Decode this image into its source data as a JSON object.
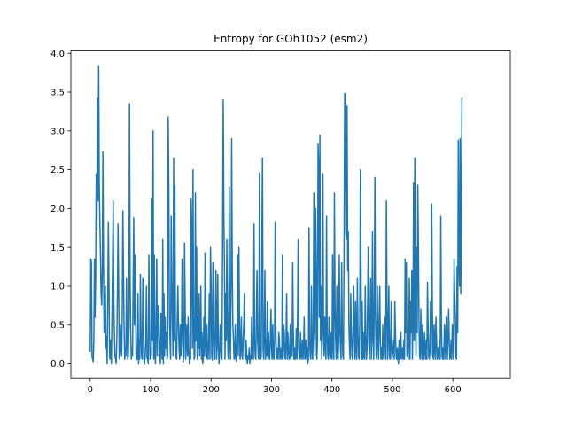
{
  "chart_data": {
    "type": "line",
    "title": "Entropy for GOh1052 (esm2)",
    "xlabel": "",
    "ylabel": "",
    "xlim": [
      -32,
      695
    ],
    "ylim": [
      -0.19,
      4.03
    ],
    "xticks": [
      0,
      100,
      200,
      300,
      400,
      500,
      600
    ],
    "yticks": [
      0.0,
      0.5,
      1.0,
      1.5,
      2.0,
      2.5,
      3.0,
      3.5,
      4.0
    ],
    "ytick_labels": [
      "0.0",
      "0.5",
      "1.0",
      "1.5",
      "2.0",
      "2.5",
      "3.0",
      "3.5",
      "4.0"
    ],
    "grid": false,
    "series": [
      {
        "color": "#1f77b4",
        "x_start": 0,
        "x_step": 1,
        "values": [
          0.15,
          1.35,
          1.3,
          0.1,
          0.05,
          0.02,
          0.3,
          1.35,
          0.6,
          1.1,
          2.45,
          1.72,
          3.42,
          2.1,
          3.84,
          2.3,
          1.8,
          1.4,
          0.9,
          0.75,
          1.2,
          2.73,
          1.3,
          0.4,
          0.8,
          1.0,
          0.2,
          0.35,
          0.0,
          0.8,
          1.82,
          1.1,
          0.1,
          0.05,
          0.3,
          0.0,
          0.62,
          1.3,
          2.1,
          0.8,
          0.4,
          0.1,
          0.05,
          0.0,
          0.3,
          0.9,
          1.8,
          1.0,
          0.08,
          0.05,
          0.5,
          0.2,
          0.1,
          0.65,
          1.97,
          1.2,
          0.5,
          0.05,
          0.2,
          0.1,
          1.1,
          0.3,
          0.05,
          0.1,
          0.5,
          3.35,
          1.1,
          0.4,
          0.05,
          0.2,
          0.1,
          1.0,
          1.88,
          0.5,
          1.4,
          0.8,
          0.04,
          0.1,
          0.05,
          0.9,
          0.0,
          0.3,
          0.05,
          1.15,
          0.4,
          0.1,
          0.05,
          1.1,
          0.7,
          0.05,
          0.0,
          0.1,
          0.3,
          1.0,
          0.08,
          0.05,
          0.0,
          1.4,
          0.6,
          0.05,
          0.2,
          0.1,
          2.12,
          0.3,
          3.0,
          0.05,
          1.4,
          0.1,
          0.0,
          0.5,
          1.35,
          0.1,
          0.75,
          0.7,
          0.3,
          0.1,
          0.0,
          0.65,
          0.2,
          0.05,
          1.6,
          0.0,
          0.9,
          0.1,
          0.6,
          0.2,
          0.4,
          0.05,
          0.1,
          3.18,
          2.3,
          0.6,
          0.3,
          0.05,
          1.9,
          1.0,
          0.5,
          0.1,
          2.65,
          0.3,
          2.3,
          0.4,
          0.1,
          0.05,
          0.6,
          1.0,
          0.5,
          0.2,
          0.05,
          0.5,
          0.1,
          0.3,
          1.35,
          0.5,
          0.02,
          0.1,
          1.55,
          0.8,
          0.05,
          0.3,
          0.5,
          0.1,
          0.6,
          0.2,
          0.0,
          0.1,
          0.05,
          2.12,
          1.6,
          0.2,
          2.5,
          0.5,
          0.05,
          0.1,
          2.2,
          0.3,
          1.5,
          0.05,
          0.6,
          0.2,
          0.9,
          0.1,
          0.3,
          1.0,
          0.05,
          0.4,
          0.0,
          0.05,
          0.6,
          0.1,
          1.42,
          0.3,
          0.05,
          0.5,
          0.1,
          0.05,
          0.3,
          0.9,
          0.05,
          1.5,
          1.0,
          0.1,
          0.04,
          1.3,
          0.5,
          0.1,
          0.05,
          0.6,
          1.2,
          0.05,
          0.3,
          1.15,
          0.2,
          0.0,
          0.1,
          0.5,
          0.2,
          0.1,
          0.05,
          1.5,
          3.4,
          2.0,
          1.3,
          0.05,
          0.9,
          0.3,
          1.6,
          0.5,
          0.1,
          0.05,
          2.28,
          0.4,
          0.05,
          1.0,
          2.9,
          1.2,
          0.5,
          0.3,
          0.05,
          0.1,
          0.5,
          0.05,
          0.02,
          0.3,
          1.4,
          0.1,
          1.5,
          0.5,
          0.05,
          0.2,
          0.6,
          0.1,
          0.05,
          0.3,
          0.5,
          0.9,
          0.1,
          0.05,
          0.3,
          0.05,
          0.0,
          0.1,
          0.05,
          0.2,
          0.0,
          0.1,
          0.05,
          0.6,
          0.3,
          0.1,
          0.05,
          1.8,
          0.3,
          0.1,
          0.05,
          0.7,
          1.2,
          0.3,
          0.1,
          0.05,
          2.46,
          0.3,
          0.05,
          0.1,
          1.55,
          2.65,
          0.2,
          0.05,
          0.4,
          1.2,
          0.05,
          0.3,
          0.1,
          0.8,
          0.05,
          0.4,
          0.1,
          0.05,
          0.3,
          0.7,
          0.2,
          0.05,
          0.5,
          0.1,
          0.05,
          0.3,
          1.82,
          0.5,
          0.05,
          0.2,
          0.1,
          0.05,
          0.4,
          0.3,
          0.05,
          0.1,
          0.2,
          0.05,
          1.4,
          0.05,
          0.5,
          0.4,
          0.1,
          0.05,
          0.3,
          0.9,
          0.05,
          0.4,
          0.2,
          0.05,
          0.1,
          0.5,
          0.05,
          0.3,
          0.1,
          1.3,
          0.4,
          0.05,
          0.2,
          0.05,
          0.1,
          0.45,
          0.05,
          0.6,
          1.6,
          0.2,
          0.05,
          0.1,
          0.4,
          0.05,
          0.15,
          0.3,
          0.05,
          0.2,
          0.6,
          0.05,
          0.1,
          0.3,
          0.05,
          0.2,
          0.0,
          0.05,
          1.75,
          0.3,
          0.1,
          0.05,
          1.0,
          0.2,
          0.05,
          0.4,
          2.2,
          0.5,
          0.1,
          2.0,
          1.3,
          0.05,
          0.3,
          2.83,
          2.5,
          0.6,
          2.95,
          0.3,
          1.0,
          0.05,
          0.4,
          2.45,
          0.5,
          0.1,
          0.6,
          0.3,
          0.05,
          1.9,
          0.4,
          0.1,
          0.05,
          0.6,
          0.2,
          0.05,
          0.4,
          0.1,
          0.05,
          1.4,
          0.2,
          0.05,
          2.2,
          0.8,
          0.3,
          0.05,
          1.0,
          0.1,
          0.05,
          0.3,
          1.4,
          0.5,
          0.2,
          0.05,
          1.3,
          0.4,
          0.1,
          0.05,
          1.5,
          3.48,
          3.48,
          1.7,
          1.6,
          3.32,
          1.2,
          1.7,
          0.5,
          0.2,
          0.05,
          0.9,
          0.4,
          0.1,
          0.05,
          0.5,
          1.0,
          0.3,
          0.05,
          0.8,
          0.2,
          0.05,
          1.1,
          0.4,
          0.1,
          0.05,
          0.6,
          2.5,
          1.2,
          0.05,
          0.8,
          0.05,
          0.4,
          0.1,
          0.05,
          1.0,
          0.3,
          0.05,
          0.2,
          0.8,
          1.5,
          0.3,
          0.05,
          0.6,
          1.1,
          0.05,
          0.4,
          1.7,
          0.3,
          0.05,
          0.8,
          2.4,
          0.6,
          0.1,
          0.05,
          1.0,
          0.3,
          0.05,
          0.6,
          1.0,
          0.3,
          0.05,
          0.2,
          0.05,
          0.5,
          0.1,
          0.05,
          0.3,
          0.6,
          0.05,
          2.1,
          0.8,
          0.05,
          0.4,
          1.0,
          0.1,
          0.05,
          0.3,
          0.8,
          0.05,
          0.1,
          0.2,
          0.3,
          0.05,
          0.8,
          0.4,
          0.1,
          0.05,
          0.2,
          0.05,
          0.0,
          0.3,
          0.05,
          0.1,
          0.4,
          0.05,
          0.1,
          0.2,
          0.05,
          0.3,
          0.05,
          1.35,
          0.4,
          1.3,
          0.1,
          0.2,
          0.05,
          0.3,
          1.1,
          0.05,
          0.8,
          0.4,
          1.2,
          0.05,
          0.6,
          2.33,
          0.3,
          2.65,
          0.6,
          0.1,
          1.5,
          0.4,
          2.3,
          1.5,
          0.5,
          0.1,
          0.05,
          0.7,
          0.2,
          0.05,
          0.5,
          0.1,
          0.05,
          0.4,
          0.2,
          0.05,
          0.3,
          0.05,
          1.05,
          0.5,
          0.1,
          0.05,
          0.2,
          0.8,
          0.1,
          2.06,
          0.8,
          0.1,
          0.05,
          0.5,
          0.2,
          0.05,
          0.6,
          0.3,
          0.05,
          0.2,
          0.1,
          0.05,
          0.3,
          0.05,
          1.9,
          0.5,
          0.1,
          0.05,
          0.2,
          0.05,
          0.5,
          0.3,
          0.05,
          0.6,
          0.2,
          0.05,
          0.4,
          0.7,
          0.3,
          0.05,
          0.1,
          0.3,
          0.05,
          0.5,
          0.3,
          0.05,
          1.35,
          0.9,
          0.6,
          0.1,
          0.05,
          1.25,
          0.4,
          2.88,
          1.3,
          1.0,
          2.9,
          0.9,
          1.8,
          3.42
        ]
      }
    ]
  }
}
